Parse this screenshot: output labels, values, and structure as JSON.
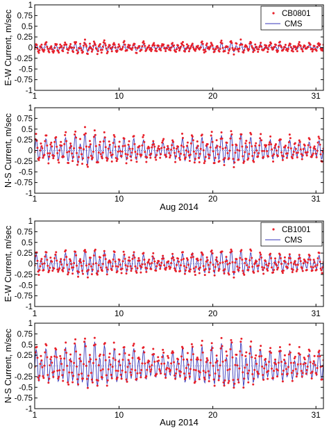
{
  "chart_data": [
    {
      "type": "line",
      "ylabel": "E-W Current, m/sec",
      "xlabel": "",
      "x_unit_label": "",
      "xlim": [
        1,
        31.8
      ],
      "ylim": [
        -1,
        1
      ],
      "xticks": [
        "1",
        "10",
        "20",
        "31"
      ],
      "yticks": [
        "1",
        "0.75",
        "0.5",
        "0.25",
        "0",
        "-0.25",
        "-0.5",
        "-0.75",
        "-1"
      ],
      "legend_position": "top-right",
      "series": [
        {
          "name": "CB0801",
          "style": "markers",
          "color": "#e8202a",
          "amplitude": 0.1,
          "noise": 0.05,
          "offset": 0.0,
          "mean_period_days": 0.52
        },
        {
          "name": "CMS",
          "style": "line",
          "color": "#3535b8",
          "amplitude": 0.08,
          "noise": 0.0,
          "offset": 0.0,
          "mean_period_days": 0.52
        }
      ]
    },
    {
      "type": "line",
      "ylabel": "N-S Current, m/sec",
      "xlabel": "Aug 2014",
      "xlim": [
        1,
        31.8
      ],
      "ylim": [
        -1,
        1
      ],
      "xticks": [
        "1",
        "10",
        "20",
        "31"
      ],
      "yticks": [
        "1",
        "0.75",
        "0.5",
        "0.25",
        "0",
        "-0.25",
        "-0.5",
        "-0.75",
        "-1"
      ],
      "series": [
        {
          "name": "",
          "style": "markers",
          "color": "#e8202a",
          "amplitude": 0.3,
          "noise": 0.07,
          "offset": 0.02,
          "mean_period_days": 0.52
        },
        {
          "name": "",
          "style": "line",
          "color": "#3535b8",
          "amplitude": 0.26,
          "noise": 0.0,
          "offset": 0.0,
          "mean_period_days": 0.52
        }
      ]
    },
    {
      "type": "line",
      "ylabel": "E-W Current, m/sec",
      "xlabel": "",
      "xlim": [
        1,
        31.8
      ],
      "ylim": [
        -1,
        1
      ],
      "xticks": [
        "1",
        "10",
        "20",
        "31"
      ],
      "yticks": [
        "1",
        "0.75",
        "0.5",
        "0.25",
        "0",
        "-0.25",
        "-0.5",
        "-0.75",
        "-1"
      ],
      "legend_position": "top-right",
      "series": [
        {
          "name": "CB1001",
          "style": "markers",
          "color": "#e8202a",
          "amplitude": 0.24,
          "noise": 0.06,
          "offset": 0.0,
          "mean_period_days": 0.52
        },
        {
          "name": "CMS",
          "style": "line",
          "color": "#3535b8",
          "amplitude": 0.22,
          "noise": 0.0,
          "offset": 0.0,
          "mean_period_days": 0.52
        }
      ]
    },
    {
      "type": "line",
      "ylabel": "N-S Current, m/sec",
      "xlabel": "Aug 2014",
      "xlim": [
        1,
        31.8
      ],
      "ylim": [
        -1,
        1
      ],
      "xticks": [
        "1",
        "10",
        "20",
        "31"
      ],
      "yticks": [
        "1",
        "0.75",
        "0.5",
        "0.25",
        "0",
        "-0.25",
        "-0.5",
        "-0.75",
        "-1"
      ],
      "series": [
        {
          "name": "",
          "style": "markers",
          "color": "#e8202a",
          "amplitude": 0.42,
          "noise": 0.08,
          "offset": 0.03,
          "mean_period_days": 0.52
        },
        {
          "name": "",
          "style": "line",
          "color": "#3535b8",
          "amplitude": 0.4,
          "noise": 0.0,
          "offset": -0.02,
          "mean_period_days": 0.52
        }
      ]
    }
  ]
}
